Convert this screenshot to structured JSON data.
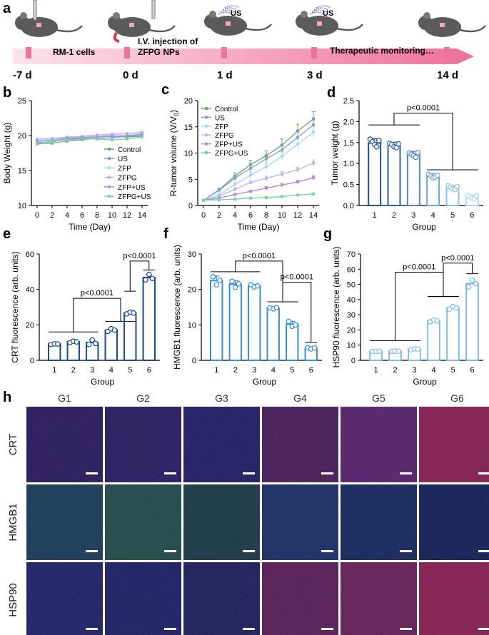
{
  "colors": {
    "control": "#6aa86e",
    "us": "#8aa0c8",
    "zfp": "#a9d7ef",
    "zfpg": "#b7b9ea",
    "zfpus": "#b58ad8",
    "zfpgus": "#76d6a0",
    "bars_d": [
      "#1f4e8c",
      "#2f63a8",
      "#4f86c4",
      "#6fa6d6",
      "#8fc0e6",
      "#b3d7f0"
    ],
    "bars_e": [
      "#1c4a86",
      "#1c4a86",
      "#1c4a86",
      "#1c4a86",
      "#1c4a86",
      "#1c4a86"
    ],
    "bars_f": [
      "#3a8fd0",
      "#3a8fd0",
      "#3a8fd0",
      "#3a8fd0",
      "#3a8fd0",
      "#3a8fd0"
    ],
    "bars_g": [
      "#7fbde8",
      "#7fbde8",
      "#7fbde8",
      "#7fbde8",
      "#7fbde8",
      "#7fbde8"
    ],
    "timeline": "#f3a6c0"
  },
  "panel_a": {
    "label": "a",
    "timepoints": [
      "-7 d",
      "0 d",
      "1 d",
      "3 d",
      "14 d"
    ],
    "captions": [
      "RM-1 cells",
      "I.V. injection of",
      "ZFPG NPs",
      "Therapeutic monitoring…"
    ],
    "us_tags": [
      "US",
      "US"
    ]
  },
  "panel_h": {
    "label": "h",
    "columns": [
      "G1",
      "G2",
      "G3",
      "G4",
      "G5",
      "G6"
    ],
    "rows": [
      "CRT",
      "HMGB1",
      "HSP90"
    ],
    "tile_colors": [
      [
        "#2a1850",
        "#2a1a55",
        "#231a58",
        "#4a1c4c",
        "#5a2060",
        "#8a1e44"
      ],
      [
        "#1a3a4c",
        "#204a3c",
        "#1a3838",
        "#1a2d5a",
        "#16264e",
        "#121f4a"
      ],
      [
        "#1c2058",
        "#1c1e56",
        "#201c50",
        "#5a1c48",
        "#6a1e4a",
        "#8a1e44"
      ]
    ]
  },
  "chart_data": [
    {
      "panel": "b",
      "type": "line",
      "xlabel": "Time (Day)",
      "ylabel": "Body Weight (g)",
      "x": [
        0,
        2,
        4,
        6,
        8,
        10,
        12,
        14
      ],
      "xlim": [
        0,
        14
      ],
      "ylim": [
        10,
        25
      ],
      "xticks": [
        "0",
        "2",
        "4",
        "6",
        "8",
        "10",
        "12",
        "14"
      ],
      "yticks": [
        "10",
        "15",
        "20",
        "25"
      ],
      "legend_position": "center-right",
      "series": [
        {
          "name": "Control",
          "values": [
            19.0,
            19.1,
            19.5,
            19.6,
            19.8,
            19.9,
            19.8,
            19.9
          ]
        },
        {
          "name": "US",
          "values": [
            18.8,
            18.9,
            19.2,
            19.4,
            19.6,
            19.7,
            19.9,
            20.0
          ]
        },
        {
          "name": "ZFP",
          "values": [
            19.3,
            19.5,
            19.7,
            19.8,
            19.9,
            20.1,
            20.3,
            20.5
          ]
        },
        {
          "name": "ZFPG",
          "values": [
            19.5,
            19.6,
            19.8,
            19.9,
            20.1,
            20.2,
            20.3,
            20.4
          ]
        },
        {
          "name": "ZFP+US",
          "values": [
            19.2,
            19.3,
            19.6,
            19.7,
            19.8,
            19.9,
            20.0,
            20.2
          ]
        },
        {
          "name": "ZFPG+US",
          "values": [
            18.9,
            19.2,
            19.4,
            19.5,
            19.5,
            19.4,
            19.5,
            19.8
          ]
        }
      ]
    },
    {
      "panel": "c",
      "type": "line",
      "xlabel": "Time (Day)",
      "ylabel": "R-tumor volume (V/V",
      "ylabel_sub": "0",
      "ylabel_end": ")",
      "x": [
        0,
        2,
        4,
        6,
        8,
        10,
        12,
        14
      ],
      "xlim": [
        0,
        14
      ],
      "ylim": [
        0,
        20
      ],
      "xticks": [
        "0",
        "2",
        "4",
        "6",
        "8",
        "10",
        "12",
        "14"
      ],
      "yticks": [
        "0",
        "5",
        "10",
        "15",
        "20"
      ],
      "legend_position": "top-left",
      "series": [
        {
          "name": "Control",
          "values": [
            1.0,
            3.0,
            5.6,
            7.8,
            9.5,
            11.5,
            14.2,
            16.5
          ],
          "err": [
            0.1,
            0.3,
            0.6,
            0.8,
            0.9,
            1.2,
            1.3,
            1.4
          ]
        },
        {
          "name": "US",
          "values": [
            1.0,
            2.9,
            5.2,
            7.1,
            8.9,
            10.6,
            13.0,
            15.4
          ],
          "err": [
            0.1,
            0.3,
            0.5,
            0.7,
            0.8,
            1.0,
            1.1,
            1.3
          ]
        },
        {
          "name": "ZFP",
          "values": [
            1.0,
            2.1,
            4.0,
            5.8,
            7.4,
            9.4,
            11.7,
            14.0
          ],
          "err": [
            0.1,
            0.2,
            0.4,
            0.5,
            0.6,
            0.8,
            0.9,
            1.0
          ]
        },
        {
          "name": "ZFPG",
          "values": [
            1.0,
            1.8,
            3.1,
            4.4,
            5.2,
            6.0,
            6.8,
            8.1
          ],
          "err": [
            0.1,
            0.2,
            0.3,
            0.3,
            0.4,
            0.5,
            0.5,
            0.6
          ]
        },
        {
          "name": "ZFP+US",
          "values": [
            1.0,
            1.4,
            2.1,
            2.7,
            3.3,
            3.9,
            4.5,
            5.3
          ],
          "err": [
            0.1,
            0.1,
            0.2,
            0.2,
            0.3,
            0.3,
            0.3,
            0.4
          ]
        },
        {
          "name": "ZFPG+US",
          "values": [
            1.0,
            1.1,
            1.2,
            1.4,
            1.5,
            1.7,
            2.0,
            2.2
          ],
          "err": [
            0.05,
            0.1,
            0.1,
            0.1,
            0.1,
            0.1,
            0.15,
            0.2
          ]
        }
      ]
    },
    {
      "panel": "d",
      "type": "bar",
      "xlabel": "Group",
      "ylabel": "Tumor weight (g)",
      "categories": [
        "1",
        "2",
        "3",
        "4",
        "5",
        "6"
      ],
      "values": [
        1.49,
        1.43,
        1.21,
        0.7,
        0.42,
        0.2
      ],
      "err": [
        0.1,
        0.08,
        0.08,
        0.06,
        0.06,
        0.05
      ],
      "points": [
        [
          1.58,
          1.52,
          1.45,
          1.4,
          1.55
        ],
        [
          1.48,
          1.45,
          1.4,
          1.38,
          1.47
        ],
        [
          1.25,
          1.22,
          1.18,
          1.15,
          1.26
        ],
        [
          0.74,
          0.7,
          0.66,
          0.68,
          0.72
        ],
        [
          0.47,
          0.44,
          0.4,
          0.38,
          0.45
        ],
        [
          0.24,
          0.21,
          0.18,
          0.16,
          0.23
        ]
      ],
      "ylim": [
        0,
        2.5
      ],
      "yticks": [
        "0.0",
        "0.5",
        "1.0",
        "1.5",
        "2.0",
        "2.5"
      ],
      "annotations": [
        "p<0.0001"
      ]
    },
    {
      "panel": "e",
      "type": "bar",
      "xlabel": "Group",
      "ylabel": "CRT fluorescence (arb. units)",
      "categories": [
        "1",
        "2",
        "3",
        "4",
        "5",
        "6"
      ],
      "values": [
        9.2,
        10.4,
        10.0,
        17.0,
        26.7,
        46.7
      ],
      "err": [
        0.4,
        0.6,
        1.5,
        0.8,
        0.6,
        1.6
      ],
      "points": [
        [
          9.0,
          9.3,
          9.2
        ],
        [
          10.0,
          10.8,
          10.4
        ],
        [
          9.0,
          11.5,
          9.5
        ],
        [
          16.3,
          17.8,
          17.0
        ],
        [
          26.2,
          27.2,
          26.7
        ],
        [
          45.4,
          48.5,
          46.2
        ]
      ],
      "ylim": [
        0,
        60
      ],
      "yticks": [
        "0",
        "20",
        "40",
        "60"
      ],
      "annotations": [
        "p<0.0001",
        "p<0.0001"
      ]
    },
    {
      "panel": "f",
      "type": "bar",
      "xlabel": "Group",
      "ylabel": "HMGB1 fluorescence (arb. units)",
      "categories": [
        "1",
        "2",
        "3",
        "4",
        "5",
        "6"
      ],
      "values": [
        22.5,
        21.5,
        21.0,
        14.7,
        10.2,
        3.4
      ],
      "err": [
        1.3,
        1.0,
        0.4,
        0.3,
        0.8,
        0.3
      ],
      "points": [
        [
          23.6,
          21.3,
          22.6
        ],
        [
          22.3,
          20.6,
          21.6
        ],
        [
          21.3,
          20.7,
          21.0
        ],
        [
          14.8,
          14.5,
          14.9
        ],
        [
          11.0,
          9.6,
          10.0
        ],
        [
          3.5,
          3.2,
          3.5
        ]
      ],
      "ylim": [
        0,
        30
      ],
      "yticks": [
        "0",
        "10",
        "20",
        "30"
      ],
      "annotations": [
        "p<0.0001",
        "p<0.0001"
      ]
    },
    {
      "panel": "g",
      "type": "bar",
      "xlabel": "Group",
      "ylabel": "HSP90 fluorescence (arb. units)",
      "categories": [
        "1",
        "2",
        "3",
        "4",
        "5",
        "6"
      ],
      "values": [
        5.9,
        6.0,
        7.3,
        26.0,
        34.5,
        50.5
      ],
      "err": [
        0.2,
        0.3,
        0.4,
        0.8,
        1.0,
        2.2
      ],
      "points": [
        [
          5.8,
          6.0,
          5.9
        ],
        [
          5.9,
          6.1,
          6.0
        ],
        [
          7.0,
          7.5,
          7.4
        ],
        [
          25.4,
          26.6,
          26.0
        ],
        [
          33.6,
          35.4,
          34.5
        ],
        [
          48.3,
          52.8,
          50.4
        ]
      ],
      "ylim": [
        0,
        70
      ],
      "yticks": [
        "0",
        "10",
        "20",
        "30",
        "40",
        "50",
        "60",
        "70"
      ],
      "annotations": [
        "p<0.0001",
        "p<0.0001"
      ]
    }
  ]
}
